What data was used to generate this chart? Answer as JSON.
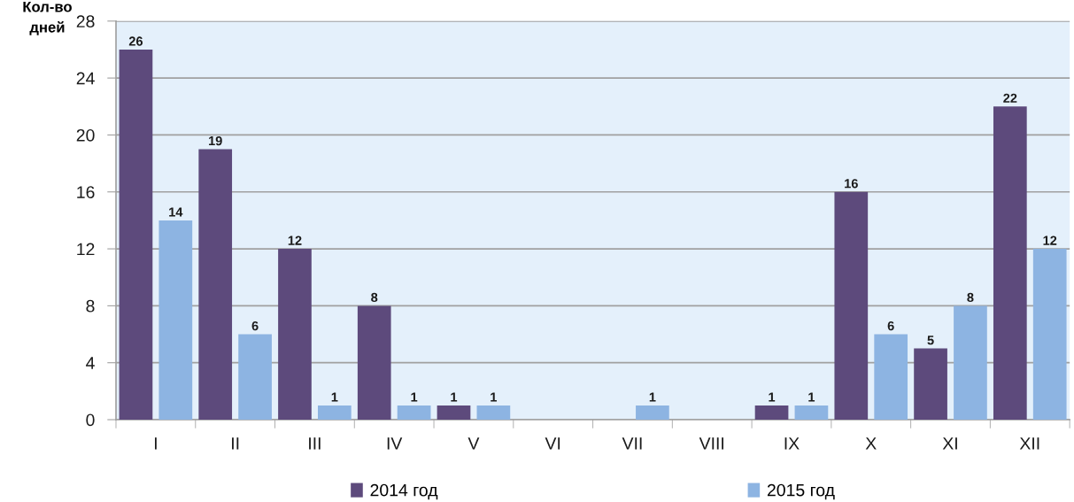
{
  "chart_data": {
    "type": "bar",
    "ylabel": "Кол-во\nдней",
    "categories": [
      "I",
      "II",
      "III",
      "IV",
      "V",
      "VI",
      "VII",
      "VIII",
      "IX",
      "X",
      "XI",
      "XII"
    ],
    "series": [
      {
        "name": "2014 год",
        "color": "#5d4a7c",
        "values": [
          26,
          19,
          12,
          8,
          1,
          null,
          null,
          null,
          1,
          16,
          5,
          22
        ]
      },
      {
        "name": "2015 год",
        "color": "#8db4e2",
        "values": [
          14,
          6,
          1,
          1,
          1,
          null,
          1,
          null,
          1,
          6,
          8,
          12
        ]
      }
    ],
    "ylim": [
      0,
      28
    ],
    "yticks": [
      0,
      4,
      8,
      12,
      16,
      20,
      24,
      28
    ],
    "grid": "y",
    "legend": "bottom",
    "data_labels": true
  }
}
